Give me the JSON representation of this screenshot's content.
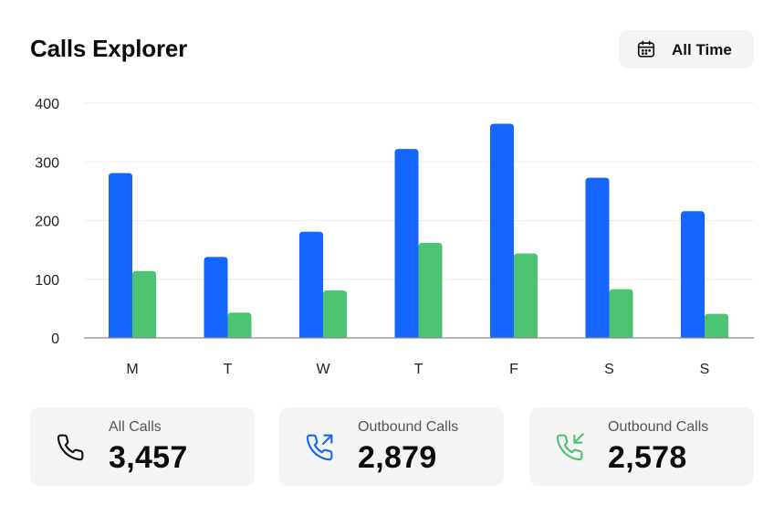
{
  "header": {
    "title": "Calls Explorer",
    "range_label": "All Time"
  },
  "chart_data": {
    "type": "bar",
    "categories": [
      "M",
      "T",
      "W",
      "T",
      "F",
      "S",
      "S"
    ],
    "series": [
      {
        "color": "#1565ff",
        "values": [
          281,
          138,
          181,
          322,
          365,
          273,
          216
        ]
      },
      {
        "color": "#4cc472",
        "values": [
          114,
          43,
          81,
          162,
          144,
          83,
          41
        ]
      }
    ],
    "ylim": [
      0,
      400
    ],
    "yticks": [
      0,
      100,
      200,
      300,
      400
    ],
    "grid": true
  },
  "stats": [
    {
      "label": "All Calls",
      "value": "3,457",
      "icon": "phone-icon",
      "color": "#111111"
    },
    {
      "label": "Outbound Calls",
      "value": "2,879",
      "icon": "phone-outgoing-icon",
      "color": "#1565ff"
    },
    {
      "label": "Outbound Calls",
      "value": "2,578",
      "icon": "phone-incoming-icon",
      "color": "#4cc472"
    }
  ]
}
